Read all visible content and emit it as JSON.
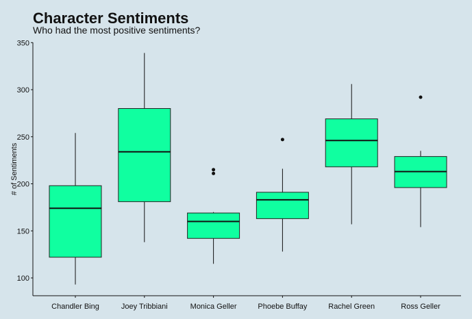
{
  "chart_data": {
    "type": "boxplot",
    "title": "Character Sentiments",
    "subtitle": "Who had the most positive sentiments?",
    "xlabel": "",
    "ylabel": "# of Sentiments",
    "ylim": [
      80,
      350
    ],
    "yticks": [
      100,
      150,
      200,
      250,
      300,
      350
    ],
    "grid": false,
    "box_color": "#10ffa0",
    "categories": [
      "Chandler Bing",
      "Joey Tribbiani",
      "Monica Geller",
      "Phoebe Buffay",
      "Rachel Green",
      "Ross Geller"
    ],
    "boxes": [
      {
        "min": 93,
        "q1": 122,
        "median": 174,
        "q3": 198,
        "max": 254,
        "outliers": []
      },
      {
        "min": 138,
        "q1": 181,
        "median": 234,
        "q3": 280,
        "max": 339,
        "outliers": []
      },
      {
        "min": 115,
        "q1": 142,
        "median": 160,
        "q3": 169,
        "max": 170,
        "outliers": [
          211,
          215
        ]
      },
      {
        "min": 128,
        "q1": 163,
        "median": 183,
        "q3": 191,
        "max": 216,
        "outliers": [
          247
        ]
      },
      {
        "min": 157,
        "q1": 218,
        "median": 246,
        "q3": 269,
        "max": 306,
        "outliers": []
      },
      {
        "min": 154,
        "q1": 196,
        "median": 213,
        "q3": 229,
        "max": 235,
        "outliers": [
          292
        ]
      }
    ]
  }
}
